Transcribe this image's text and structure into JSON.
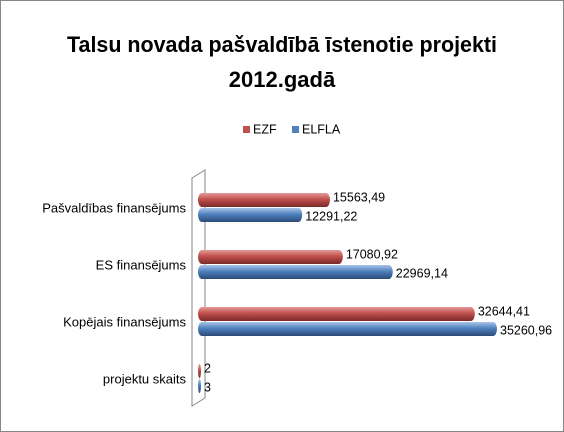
{
  "chart_data": {
    "type": "bar",
    "orientation": "horizontal",
    "title": [
      "Talsu novada pašvaldībā īstenotie projekti",
      "2012.gadā"
    ],
    "categories": [
      "Pašvaldības finansējums",
      "ES finansējums",
      "Kopējais finansējums",
      "projektu skaits"
    ],
    "series": [
      {
        "name": "EZF",
        "color": "#c0504d",
        "values": [
          15563.49,
          17080.92,
          32644.41,
          2
        ],
        "value_labels": [
          "15563,49",
          "17080,92",
          "32644,41",
          "2"
        ]
      },
      {
        "name": "ELFLA",
        "color": "#4f81bd",
        "values": [
          12291.22,
          22969.14,
          35260.96,
          3
        ],
        "value_labels": [
          "12291,22",
          "22969,14",
          "35260,96",
          "3"
        ]
      }
    ],
    "legend": "top"
  }
}
